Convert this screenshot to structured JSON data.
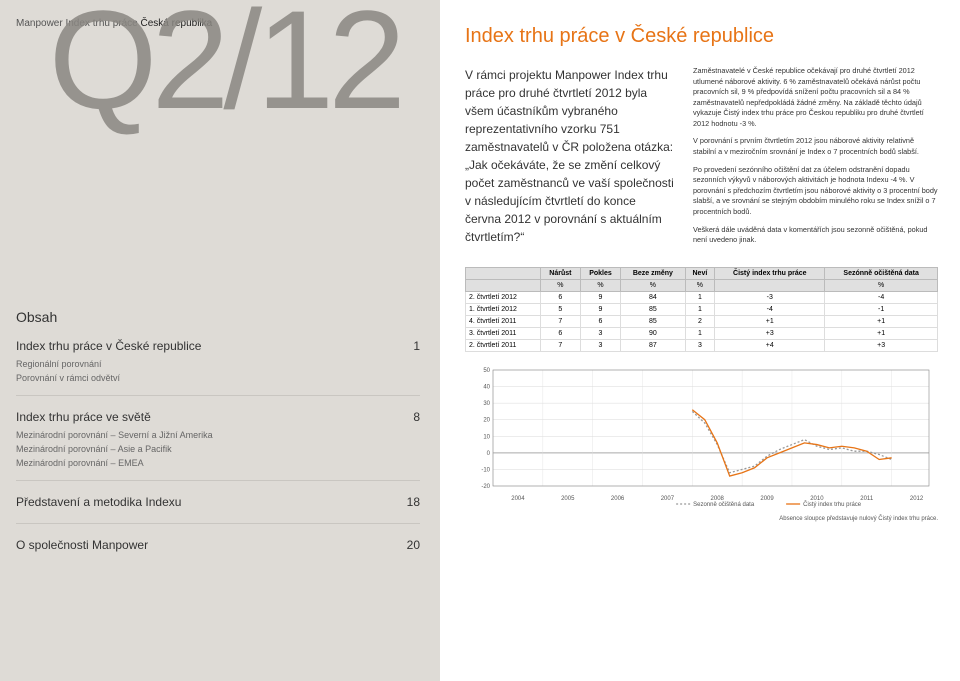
{
  "header": {
    "light": "Manpower Index trhu práce",
    "bold": "Česká republika"
  },
  "big_label": "Q2/12",
  "obsah": {
    "title": "Obsah",
    "groups": [
      {
        "main": {
          "label": "Index trhu práce v České republice",
          "page": "1"
        },
        "subs": [
          "Regionální porovnání",
          "Porovnání v rámci odvětví"
        ]
      },
      {
        "main": {
          "label": "Index trhu práce ve světě",
          "page": "8"
        },
        "subs": [
          "Mezinárodní porovnání – Severní a Jižní Amerika",
          "Mezinárodní porovnání – Asie a Pacifik",
          "Mezinárodní porovnání – EMEA"
        ]
      },
      {
        "main": {
          "label": "Představení a metodika Indexu",
          "page": "18"
        },
        "subs": []
      },
      {
        "main": {
          "label": "O společnosti Manpower",
          "page": "20"
        },
        "subs": []
      }
    ]
  },
  "right": {
    "title": "Index trhu práce v České republice",
    "intro": "V rámci projektu Manpower Index trhu práce pro druhé čtvrtletí 2012 byla všem účastníkům vybraného reprezentativního vzorku 751 zaměstnavatelů v ČR položena otázka: „Jak očekáváte, že se změní celkový počet zaměstnanců ve vaší společnosti v následujícím čtvrtletí do konce června 2012 v porovnání s aktuálním čtvrtletím?“",
    "paragraphs": [
      "Zaměstnavatelé v České republice očekávají pro druhé čtvrtletí 2012 utlumené náborové aktivity. 6 % zaměstnavatelů očekává nárůst počtu pracovních sil, 9 % předpovídá snížení počtu pracovních sil a 84 % zaměstnavatelů nepředpokládá žádné změny. Na základě těchto údajů vykazuje Čistý index trhu práce pro Českou republiku pro druhé čtvrtletí 2012 hodnotu -3 %.",
      "V porovnání s prvním čtvrtletím 2012 jsou náborové aktivity relativně stabilní a v meziročním srovnání je Index o 7 procentních bodů slabší.",
      "Po provedení sezónního očištění dat za účelem odstranění dopadu sezonních výkyvů v náborových aktivitách je hodnota Indexu -4 %. V porovnání s předchozím čtvrtletím jsou náborové aktivity o 3 procentní body slabší, a ve srovnání se stejným obdobím minulého roku se Index snížil o 7 procentních bodů.",
      "Veškerá dále uváděná data v komentářích jsou sezonně očištěná, pokud není uvedeno jinak."
    ]
  },
  "table": {
    "headers": [
      "",
      "Nárůst",
      "Pokles",
      "Beze změny",
      "Neví",
      "Čistý index trhu práce",
      "Sezónně očištěná data"
    ],
    "unit_row": [
      "",
      "%",
      "%",
      "%",
      "%",
      "",
      "%"
    ],
    "rows": [
      [
        "2. čtvrtletí 2012",
        "6",
        "9",
        "84",
        "1",
        "-3",
        "-4"
      ],
      [
        "1. čtvrtletí 2012",
        "5",
        "9",
        "85",
        "1",
        "-4",
        "-1"
      ],
      [
        "4. čtvrtletí 2011",
        "7",
        "6",
        "85",
        "2",
        "+1",
        "+1"
      ],
      [
        "3. čtvrtletí 2011",
        "6",
        "3",
        "90",
        "1",
        "+3",
        "+1"
      ],
      [
        "2. čtvrtletí 2011",
        "7",
        "3",
        "87",
        "3",
        "+4",
        "+3"
      ]
    ]
  },
  "chart": {
    "type": "line",
    "ylim": [
      -20,
      50
    ],
    "yticks": [
      -20,
      -10,
      0,
      10,
      20,
      30,
      40,
      50
    ],
    "x_labels": [
      "2004",
      "2005",
      "2006",
      "2007",
      "2008",
      "2009",
      "2010",
      "2011",
      "2012"
    ],
    "x_per_year": 4,
    "series": [
      {
        "name": "Sezonně očištěná data",
        "color": "#999999",
        "dash": "2,2",
        "data": [
          null,
          null,
          null,
          null,
          null,
          null,
          null,
          null,
          null,
          null,
          null,
          null,
          null,
          null,
          null,
          null,
          25,
          18,
          5,
          -12,
          -10,
          -8,
          -2,
          2,
          5,
          8,
          4,
          2,
          3,
          1,
          1,
          -1,
          -4
        ]
      },
      {
        "name": "Čistý index trhu práce",
        "color": "#e77416",
        "dash": "",
        "data": [
          null,
          null,
          null,
          null,
          null,
          null,
          null,
          null,
          null,
          null,
          null,
          null,
          null,
          null,
          null,
          null,
          26,
          20,
          6,
          -14,
          -12,
          -9,
          -3,
          0,
          3,
          6,
          5,
          3,
          4,
          3,
          1,
          -4,
          -3
        ]
      }
    ],
    "grid_color": "#e0e0e0",
    "axis_color": "#888",
    "font_size": 6,
    "note": "Absence sloupce představuje nulový Čistý index trhu práce.",
    "legend": [
      "Sezonně očištěná data",
      "Čistý index trhu práce"
    ]
  },
  "colors": {
    "accent": "#e77416",
    "left_bg": "#dedbd6"
  }
}
